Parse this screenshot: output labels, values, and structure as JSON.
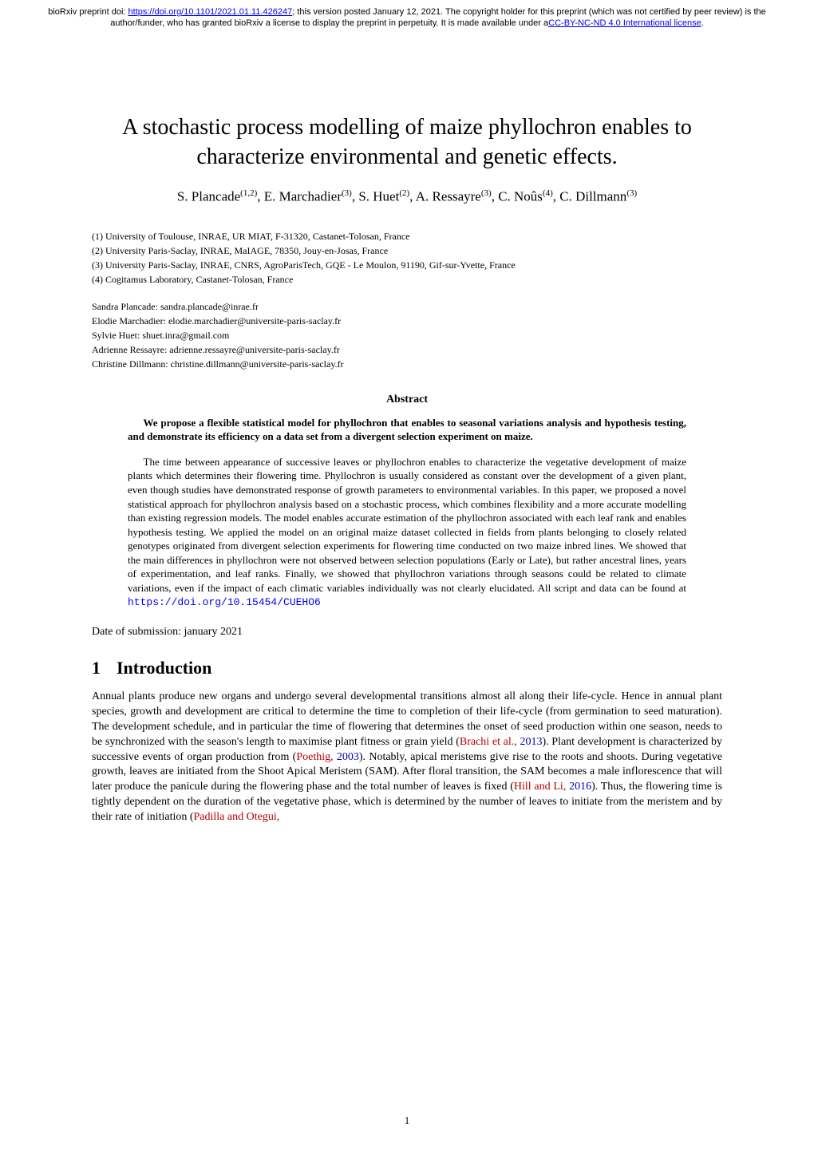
{
  "preprint": {
    "prefix": "bioRxiv preprint doi: ",
    "doi_url": "https://doi.org/10.1101/2021.01.11.426247",
    "mid": "; this version posted January 12, 2021. The copyright holder for this preprint (which was not certified by peer review) is the author/funder, who has granted bioRxiv a license to display the preprint in perpetuity. It is made available under a",
    "license_text": "CC-BY-NC-ND 4.0 International license",
    "suffix": "."
  },
  "title": "A stochastic process modelling of maize phyllochron enables to characterize environmental and genetic effects.",
  "authors_line": "S. Plancade(1,2), E. Marchadier(3), S. Huet(2), A. Ressayre(3), C. Noûs(4), C. Dillmann(3)",
  "affiliations": [
    "(1) University of Toulouse, INRAE, UR MIAT, F-31320, Castanet-Tolosan, France",
    "(2) University Paris-Saclay, INRAE, MaIAGE, 78350, Jouy-en-Josas, France",
    "(3) University Paris-Saclay, INRAE, CNRS, AgroParisTech, GQE - Le Moulon, 91190, Gif-sur-Yvette, France",
    "(4) Cogitamus Laboratory, Castanet-Tolosan, France"
  ],
  "emails": [
    "Sandra Plancade: sandra.plancade@inrae.fr",
    "Elodie Marchadier: elodie.marchadier@universite-paris-saclay.fr",
    "Sylvie Huet: shuet.inra@gmail.com",
    "Adrienne Ressayre: adrienne.ressayre@universite-paris-saclay.fr",
    "Christine Dillmann: christine.dillmann@universite-paris-saclay.fr"
  ],
  "abstract": {
    "heading": "Abstract",
    "lead": "We propose a flexible statistical model for phyllochron that enables to seasonal variations analysis and hypothesis testing, and demonstrate its efficiency on a data set from a divergent selection experiment on maize.",
    "body_pre": "The time between appearance of successive leaves or phyllochron enables to characterize the vegetative development of maize plants which determines their flowering time. Phyllochron is usually considered as constant over the development of a given plant, even though studies have demonstrated response of growth parameters to environmental variables. In this paper, we proposed a novel statistical approach for phyllochron analysis based on a stochastic process, which combines flexibility and a more accurate modelling than existing regression models. The model enables accurate estimation of the phyllochron associated with each leaf rank and enables hypothesis testing. We applied the model on an original maize dataset collected in fields from plants belonging to closely related genotypes originated from divergent selection experiments for flowering time conducted on two maize inbred lines. We showed that the main differences in phyllochron were not observed between selection populations (Early or Late), but rather ancestral lines, years of experimentation, and leaf ranks. Finally, we showed that phyllochron variations through seasons could be related to climate variations, even if the impact of each climatic variables individually was not clearly elucidated. All script and data can be found at ",
    "data_url": "https://doi.org/10.15454/CUEHO6"
  },
  "submission": "Date of submission: january 2021",
  "section1": {
    "num": "1",
    "heading": "Introduction"
  },
  "intro": {
    "p1a": "Annual plants produce new organs and undergo several developmental transitions almost all along their life-cycle. Hence in annual plant species, growth and development are critical to determine the time to completion of their life-cycle (from germination to seed maturation). The development schedule, and in particular the time of flowering that determines the onset of seed production within one season, needs to be synchronized with the season's length to maximise plant fitness or grain yield (",
    "c1a": "Brachi ",
    "c1b": "et al.",
    "c1c": ", ",
    "c1y": "2013",
    "p1b": "). Plant development is characterized by successive events of organ production from (",
    "c2a": "Poethig",
    "c2c": ", ",
    "c2y": "2003",
    "p1c": "). Notably, apical meristems give rise to the roots and shoots. During vegetative growth, leaves are initiated from the Shoot Apical Meristem (SAM). After floral transition, the SAM becomes a male inflorescence that will later produce the panicule during the flowering phase and the total number of leaves is fixed (",
    "c3a": "Hill and Li",
    "c3c": ", ",
    "c3y": "2016",
    "p1d": "). Thus, the flowering time is tightly dependent on the duration of the vegetative phase, which is determined by the number of leaves to initiate from the meristem and by their rate of initiation (",
    "c4a": "Padilla and Otegui",
    "c4c": ","
  },
  "page_number": "1",
  "colors": {
    "link": "#0000ee",
    "cite_red": "#b30000",
    "cite_blue": "#0000b3"
  }
}
